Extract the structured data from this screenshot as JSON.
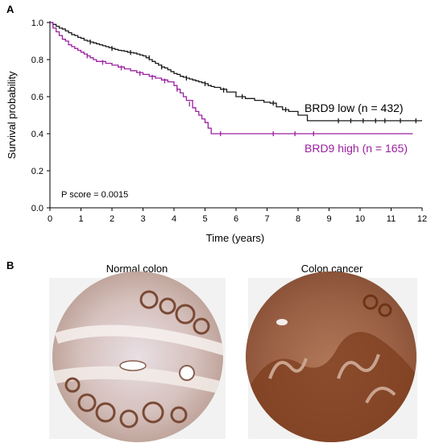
{
  "panels": {
    "a_label": "A",
    "b_label": "B"
  },
  "chart_data": {
    "type": "line",
    "subtype": "kaplan-meier",
    "xlabel": "Time (years)",
    "ylabel": "Survival probability",
    "xlim": [
      0,
      12
    ],
    "ylim": [
      0.0,
      1.0
    ],
    "xticks": [
      0,
      1,
      2,
      3,
      4,
      5,
      6,
      7,
      8,
      9,
      10,
      11,
      12
    ],
    "yticks": [
      0.0,
      0.2,
      0.4,
      0.6,
      0.8,
      1.0
    ],
    "ytick_labels": [
      "0.0",
      "0.2",
      "0.4",
      "0.6",
      "0.8",
      "1.0"
    ],
    "grid": false,
    "annotation": "P score = 0.0015",
    "series": [
      {
        "name": "BRD9 low (n = 432)",
        "color": "#1a1a1a",
        "x": [
          0,
          0.1,
          0.2,
          0.3,
          0.4,
          0.5,
          0.6,
          0.7,
          0.8,
          0.9,
          1.0,
          1.1,
          1.2,
          1.3,
          1.4,
          1.5,
          1.6,
          1.7,
          1.8,
          1.9,
          2.0,
          2.1,
          2.2,
          2.3,
          2.4,
          2.5,
          2.6,
          2.7,
          2.8,
          2.9,
          3.0,
          3.1,
          3.2,
          3.3,
          3.4,
          3.5,
          3.6,
          3.7,
          3.8,
          3.9,
          4.0,
          4.1,
          4.2,
          4.3,
          4.4,
          4.5,
          4.6,
          4.7,
          4.8,
          4.9,
          5.0,
          5.1,
          5.2,
          5.3,
          5.5,
          5.7,
          6.0,
          6.3,
          6.6,
          6.9,
          7.1,
          7.3,
          7.5,
          7.7,
          8.0,
          8.3,
          9.0,
          10.0,
          11.0,
          12.0
        ],
        "y": [
          1.0,
          0.99,
          0.98,
          0.97,
          0.965,
          0.955,
          0.945,
          0.935,
          0.93,
          0.92,
          0.915,
          0.905,
          0.9,
          0.895,
          0.89,
          0.885,
          0.88,
          0.875,
          0.87,
          0.865,
          0.86,
          0.855,
          0.85,
          0.848,
          0.845,
          0.84,
          0.838,
          0.835,
          0.83,
          0.825,
          0.82,
          0.81,
          0.8,
          0.79,
          0.78,
          0.77,
          0.76,
          0.755,
          0.745,
          0.735,
          0.725,
          0.72,
          0.71,
          0.705,
          0.7,
          0.695,
          0.69,
          0.685,
          0.68,
          0.675,
          0.67,
          0.66,
          0.655,
          0.65,
          0.64,
          0.625,
          0.6,
          0.59,
          0.58,
          0.57,
          0.565,
          0.545,
          0.53,
          0.52,
          0.5,
          0.47,
          0.47,
          0.47,
          0.47,
          0.47
        ],
        "censor_x": [
          1.3,
          2.0,
          2.6,
          3.2,
          3.6,
          4.4,
          5.0,
          5.6,
          6.2,
          7.2,
          7.6,
          9.3,
          9.7,
          10.1,
          10.5,
          10.8,
          11.3,
          11.8
        ],
        "censor_y": [
          0.895,
          0.86,
          0.838,
          0.81,
          0.76,
          0.7,
          0.67,
          0.635,
          0.6,
          0.565,
          0.53,
          0.47,
          0.47,
          0.47,
          0.47,
          0.47,
          0.47,
          0.47
        ]
      },
      {
        "name": "BRD9 high (n = 165)",
        "color": "#9b1fa0",
        "x": [
          0,
          0.1,
          0.2,
          0.3,
          0.4,
          0.5,
          0.6,
          0.7,
          0.8,
          0.9,
          1.0,
          1.1,
          1.2,
          1.3,
          1.4,
          1.5,
          1.6,
          1.8,
          2.0,
          2.2,
          2.4,
          2.6,
          2.8,
          3.0,
          3.2,
          3.4,
          3.6,
          3.8,
          4.0,
          4.1,
          4.2,
          4.3,
          4.4,
          4.6,
          4.7,
          4.8,
          4.9,
          5.0,
          5.1,
          5.2,
          5.6,
          6.0,
          7.0,
          8.0,
          9.0,
          10.0,
          11.0,
          11.7
        ],
        "y": [
          1.0,
          0.97,
          0.95,
          0.93,
          0.91,
          0.9,
          0.88,
          0.87,
          0.86,
          0.85,
          0.84,
          0.83,
          0.82,
          0.81,
          0.8,
          0.79,
          0.79,
          0.78,
          0.77,
          0.76,
          0.75,
          0.74,
          0.73,
          0.72,
          0.71,
          0.7,
          0.69,
          0.68,
          0.66,
          0.64,
          0.62,
          0.6,
          0.58,
          0.54,
          0.52,
          0.5,
          0.48,
          0.46,
          0.43,
          0.4,
          0.4,
          0.4,
          0.4,
          0.4,
          0.4,
          0.4,
          0.4,
          0.4
        ],
        "censor_x": [
          1.2,
          1.7,
          2.3,
          2.9,
          3.3,
          3.7,
          4.1,
          4.5,
          5.5,
          7.2,
          7.9,
          8.5
        ],
        "censor_y": [
          0.82,
          0.785,
          0.755,
          0.725,
          0.705,
          0.685,
          0.64,
          0.56,
          0.4,
          0.4,
          0.4,
          0.4
        ]
      }
    ]
  },
  "images": [
    {
      "title": "Normal colon",
      "stain": "low",
      "tissue": "#d8c6c0",
      "accent": "#6b3a26"
    },
    {
      "title": "Colon cancer",
      "stain": "high",
      "tissue": "#a1694e",
      "accent": "#7a3a18"
    }
  ]
}
